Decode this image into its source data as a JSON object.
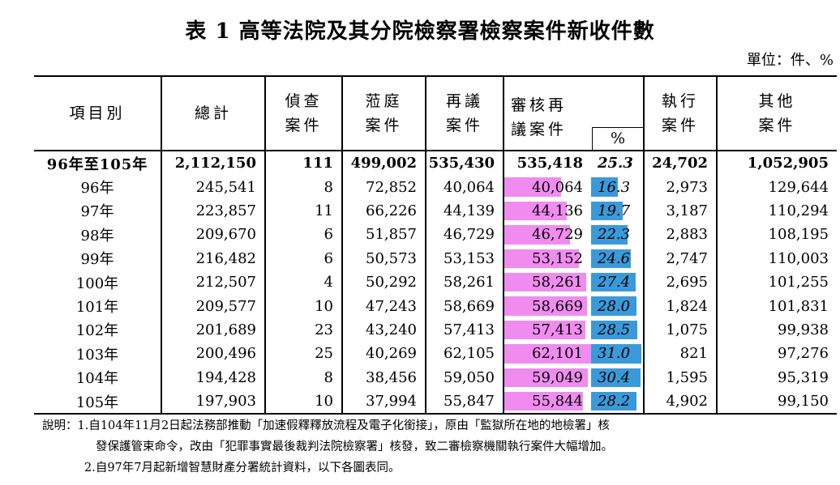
{
  "title": "表 1  高等法院及其分院檢察署檢察案件新收件數",
  "unit": "單位：件、%",
  "headers": {
    "item": "項目別",
    "total": "總計",
    "investigation_1": "偵查",
    "investigation_2": "案件",
    "trial_1": "蒞庭",
    "trial_2": "案件",
    "review_1": "再議",
    "review_2": "案件",
    "audit_1": "審核再",
    "audit_2": "議案件",
    "percent": "%",
    "exec_1": "執行",
    "exec_2": "案件",
    "other_1": "其他",
    "other_2": "案件"
  },
  "chart_data": {
    "type": "table",
    "columns": [
      "項目別",
      "總計",
      "偵查案件",
      "蒞庭案件",
      "再議案件",
      "審核再議案件",
      "%",
      "執行案件",
      "其他案件"
    ],
    "rows": [
      {
        "label": "96年至105年",
        "total": "2,112,150",
        "inv": "111",
        "trial": "499,002",
        "review": "535,430",
        "audit": "535,418",
        "pct": "25.3",
        "exec": "24,702",
        "other": "1,052,905",
        "audit_bar": 0,
        "pct_bar": 0
      },
      {
        "label": "96年",
        "total": "245,541",
        "inv": "8",
        "trial": "72,852",
        "review": "40,064",
        "audit": "40,064",
        "pct": "16.3",
        "exec": "2,973",
        "other": "129,644",
        "audit_bar": 40064,
        "pct_bar": 16.3
      },
      {
        "label": "97年",
        "total": "223,857",
        "inv": "11",
        "trial": "66,226",
        "review": "44,139",
        "audit": "44,136",
        "pct": "19.7",
        "exec": "3,187",
        "other": "110,294",
        "audit_bar": 44136,
        "pct_bar": 19.7
      },
      {
        "label": "98年",
        "total": "209,670",
        "inv": "6",
        "trial": "51,857",
        "review": "46,729",
        "audit": "46,729",
        "pct": "22.3",
        "exec": "2,883",
        "other": "108,195",
        "audit_bar": 46729,
        "pct_bar": 22.3
      },
      {
        "label": "99年",
        "total": "216,482",
        "inv": "6",
        "trial": "50,573",
        "review": "53,153",
        "audit": "53,152",
        "pct": "24.6",
        "exec": "2,747",
        "other": "110,003",
        "audit_bar": 53152,
        "pct_bar": 24.6
      },
      {
        "label": "100年",
        "total": "212,507",
        "inv": "4",
        "trial": "50,292",
        "review": "58,261",
        "audit": "58,261",
        "pct": "27.4",
        "exec": "2,695",
        "other": "101,255",
        "audit_bar": 58261,
        "pct_bar": 27.4
      },
      {
        "label": "101年",
        "total": "209,577",
        "inv": "10",
        "trial": "47,243",
        "review": "58,669",
        "audit": "58,669",
        "pct": "28.0",
        "exec": "1,824",
        "other": "101,831",
        "audit_bar": 58669,
        "pct_bar": 28.0
      },
      {
        "label": "102年",
        "total": "201,689",
        "inv": "23",
        "trial": "43,240",
        "review": "57,413",
        "audit": "57,413",
        "pct": "28.5",
        "exec": "1,075",
        "other": "99,938",
        "audit_bar": 57413,
        "pct_bar": 28.5
      },
      {
        "label": "103年",
        "total": "200,496",
        "inv": "25",
        "trial": "40,269",
        "review": "62,105",
        "audit": "62,101",
        "pct": "31.0",
        "exec": "821",
        "other": "97,276",
        "audit_bar": 62101,
        "pct_bar": 31.0
      },
      {
        "label": "104年",
        "total": "194,428",
        "inv": "8",
        "trial": "38,456",
        "review": "59,050",
        "audit": "59,049",
        "pct": "30.4",
        "exec": "1,595",
        "other": "95,319",
        "audit_bar": 59049,
        "pct_bar": 30.4
      },
      {
        "label": "105年",
        "total": "197,903",
        "inv": "10",
        "trial": "37,994",
        "review": "55,847",
        "audit": "55,844",
        "pct": "28.2",
        "exec": "4,902",
        "other": "99,150",
        "audit_bar": 55844,
        "pct_bar": 28.2
      }
    ],
    "bar_colors": {
      "audit": "#f08cf0",
      "pct": "#3a9ad9"
    }
  },
  "notes": {
    "line1": "說明：1.自104年11月2日起法務部推動「加速假釋釋放流程及電子化銜接」，原由「監獄所在地的地檢署」核",
    "line2": "發保護管束命令，改由「犯罪事實最後裁判法院檢察署」核發，致二審檢察機關執行案件大幅增加。",
    "line3": "2.自97年7月起新增智慧財產分署統計資料，以下各圖表同。"
  }
}
